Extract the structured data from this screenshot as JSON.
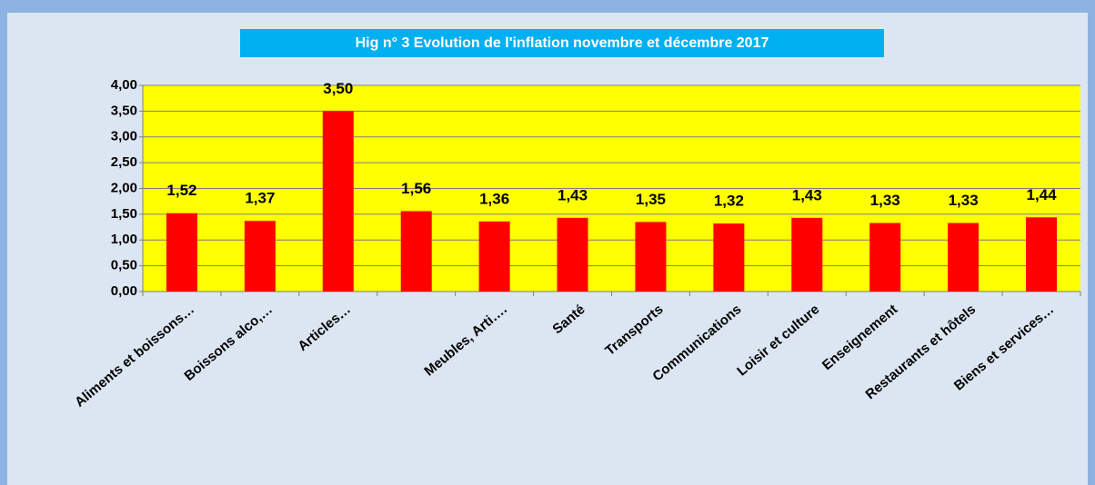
{
  "chart_data": {
    "type": "bar",
    "title": "Hig n° 3 Evolution de l'inflation  novembre et décembre 2017",
    "categories": [
      "Aliments et boissons…",
      "Boissons alco,…",
      "Articles…",
      null,
      "Meubles, Arti….",
      "Santé",
      "Transports",
      "Communications",
      "Loisir et culture",
      "Enseignement",
      "Restaurants et hôtels",
      "Biens et services…"
    ],
    "values": [
      1.52,
      1.37,
      3.5,
      1.56,
      1.36,
      1.43,
      1.35,
      1.32,
      1.43,
      1.33,
      1.33,
      1.44
    ],
    "value_labels": [
      "1,52",
      "1,37",
      "3,50",
      "1,56",
      "1,36",
      "1,43",
      "1,35",
      "1,32",
      "1,43",
      "1,33",
      "1,33",
      "1,44"
    ],
    "color": "#ff0000",
    "ylim": [
      0,
      4
    ],
    "yticks": [
      {
        "value": 0,
        "label": "0,00"
      },
      {
        "value": 0.5,
        "label": "0,50"
      },
      {
        "value": 1,
        "label": "1,00"
      },
      {
        "value": 1.5,
        "label": "1,50"
      },
      {
        "value": 2,
        "label": "2,00"
      },
      {
        "value": 2.5,
        "label": "2,50"
      },
      {
        "value": 3,
        "label": "3,00"
      },
      {
        "value": 3.5,
        "label": "3,50"
      },
      {
        "value": 4,
        "label": "4,00"
      }
    ],
    "grid": true
  }
}
